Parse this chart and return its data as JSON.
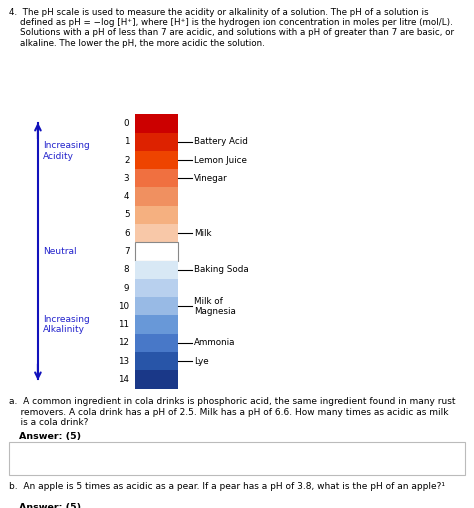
{
  "title_text": "4.  The pH scale is used to measure the acidity or alkalinity of a solution. The pH of a solution is\n    defined as pH = −log [H⁺], where [H⁺] is the hydrogen ion concentration in moles per litre (mol/L).\n    Solutions with a pH of less than 7 are acidic, and solutions with a pH of greater than 7 are basic, or\n    alkaline. The lower the pH, the more acidic the solution.",
  "ph_colors": [
    "#cc0000",
    "#dd2200",
    "#ee4400",
    "#f07040",
    "#f09060",
    "#f5b080",
    "#f8c8a8",
    "#ffffff",
    "#d8e8f5",
    "#b8d0ee",
    "#98bae5",
    "#6898d8",
    "#4878c8",
    "#2855a8",
    "#1a3888"
  ],
  "label_positions": {
    "1": "Battery Acid",
    "2": "Lemon Juice",
    "3": "Vinegar",
    "6": "Milk",
    "8": "Baking Soda",
    "10": "Milk of\nMagnesia",
    "12": "Ammonia",
    "13": "Lye"
  },
  "arrow_color": "#1111bb",
  "blue_text_color": "#2222cc",
  "text_color": "#000000",
  "background_color": "#ffffff",
  "question_a": "a.  A common ingredient in cola drinks is phosphoric acid, the same ingredient found in many rust\n    removers. A cola drink has a pH of 2.5. Milk has a pH of 6.6. How many times as acidic as milk\n    is a cola drink?",
  "answer_label": "Answer: (5)",
  "question_b": "b.  An apple is 5 times as acidic as a pear. If a pear has a pH of 3.8, what is the pH of an apple?¹"
}
